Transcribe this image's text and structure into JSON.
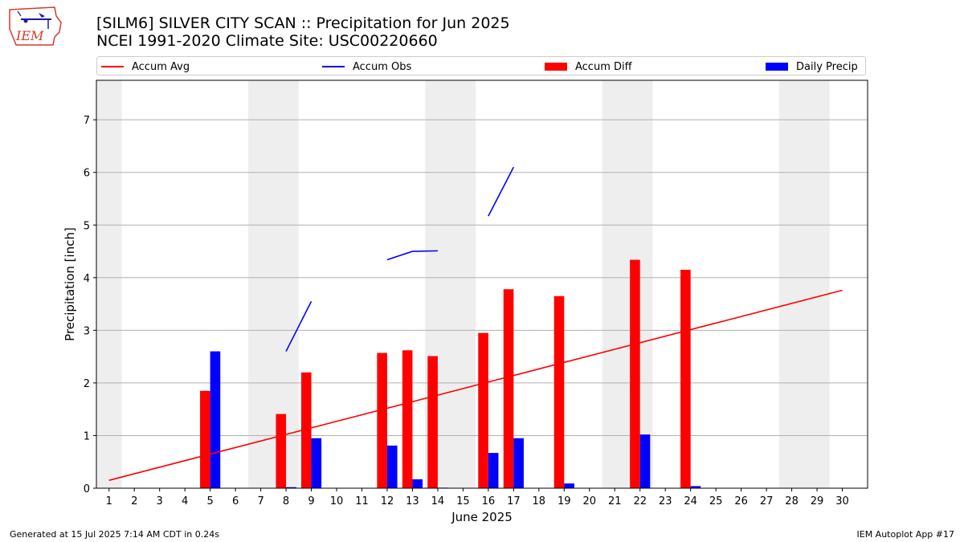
{
  "logo": {
    "text": "IEM",
    "color": "#d63a2a"
  },
  "header": {
    "title": "[SILM6] SILVER CITY SCAN :: Precipitation for Jun 2025",
    "subtitle": "NCEI 1991-2020 Climate Site: USC00220660"
  },
  "legend": {
    "placement": "top, above plot",
    "items": [
      {
        "label": "Accum Avg",
        "kind": "line",
        "color": "#ff0000"
      },
      {
        "label": "Accum Obs",
        "kind": "line",
        "color": "#0000ff"
      },
      {
        "label": "Accum Diff",
        "kind": "bar",
        "color": "#ff0000"
      },
      {
        "label": "Daily Precip",
        "kind": "bar",
        "color": "#0000ff"
      }
    ]
  },
  "chart_data": {
    "type": "bar",
    "xlabel": "June 2025",
    "ylabel": "Precipitation [inch]",
    "xlim": [
      0.5,
      31.0
    ],
    "ylim": [
      0,
      7.75
    ],
    "yticks": [
      0,
      1,
      2,
      3,
      4,
      5,
      6,
      7
    ],
    "xticks": [
      1,
      2,
      3,
      4,
      5,
      6,
      7,
      8,
      9,
      10,
      11,
      12,
      13,
      14,
      15,
      16,
      17,
      18,
      19,
      20,
      21,
      22,
      23,
      24,
      25,
      26,
      27,
      28,
      29,
      30
    ],
    "grid": "horizontal",
    "weekend_shading": [
      [
        0.5,
        1.5
      ],
      [
        6.5,
        8.5
      ],
      [
        13.5,
        15.5
      ],
      [
        20.5,
        22.5
      ],
      [
        27.5,
        29.5
      ]
    ],
    "shade_color": "#eeeeee",
    "accum_avg": {
      "name": "Accum Avg",
      "color": "#ff0000",
      "x": [
        1,
        30
      ],
      "y": [
        0.15,
        3.76
      ]
    },
    "accum_obs": {
      "name": "Accum Obs",
      "color": "#0000ff",
      "segments": [
        {
          "x": [
            8,
            9
          ],
          "y": [
            2.6,
            3.55
          ]
        },
        {
          "x": [
            12,
            13,
            14
          ],
          "y": [
            4.34,
            4.5,
            4.51
          ]
        },
        {
          "x": [
            16,
            17
          ],
          "y": [
            5.17,
            6.1
          ]
        }
      ]
    },
    "accum_diff": {
      "name": "Accum Diff",
      "color": "#ff0000",
      "x": [
        5,
        8,
        9,
        12,
        13,
        14,
        16,
        17,
        19,
        22,
        24
      ],
      "values": [
        1.85,
        1.41,
        2.2,
        2.57,
        2.62,
        2.51,
        2.95,
        3.78,
        3.65,
        4.34,
        4.15
      ]
    },
    "daily_precip": {
      "name": "Daily Precip",
      "color": "#0000ff",
      "x": [
        5,
        8,
        9,
        12,
        13,
        14,
        16,
        17,
        19,
        22,
        24
      ],
      "values": [
        2.6,
        0.02,
        0.95,
        0.81,
        0.17,
        0.01,
        0.67,
        0.95,
        0.09,
        1.02,
        0.04
      ]
    }
  },
  "footer": {
    "left": "Generated at 15 Jul 2025 7:14 AM CDT in 0.24s",
    "right": "IEM Autoplot App #17"
  }
}
